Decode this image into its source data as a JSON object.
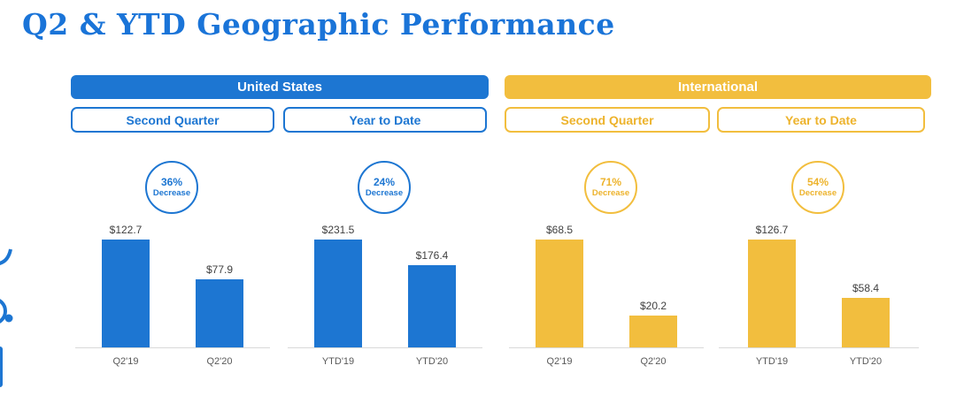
{
  "page": {
    "title": "Q2 & YTD Geographic Performance"
  },
  "colors": {
    "blue": "#1D76D2",
    "yellow": "#F2BE3E"
  },
  "sections": [
    {
      "label": "United States"
    },
    {
      "label": "International"
    }
  ],
  "subheaders": [
    "Second Quarter",
    "Year to Date",
    "Second Quarter",
    "Year to Date"
  ],
  "chart_data": [
    {
      "type": "bar",
      "section": "United States",
      "period": "Second Quarter",
      "badge": {
        "percent": "36%",
        "label": "Decrease"
      },
      "categories": [
        "Q2'19",
        "Q2'20"
      ],
      "values": [
        122.7,
        77.9
      ],
      "value_labels": [
        "$122.7",
        "$77.9"
      ],
      "bar_color": "#1D76D2"
    },
    {
      "type": "bar",
      "section": "United States",
      "period": "Year to Date",
      "badge": {
        "percent": "24%",
        "label": "Decrease"
      },
      "categories": [
        "YTD'19",
        "YTD'20"
      ],
      "values": [
        231.5,
        176.4
      ],
      "value_labels": [
        "$231.5",
        "$176.4"
      ],
      "bar_color": "#1D76D2"
    },
    {
      "type": "bar",
      "section": "International",
      "period": "Second Quarter",
      "badge": {
        "percent": "71%",
        "label": "Decrease"
      },
      "categories": [
        "Q2'19",
        "Q2'20"
      ],
      "values": [
        68.5,
        20.2
      ],
      "value_labels": [
        "$68.5",
        "$20.2"
      ],
      "bar_color": "#F2BE3E"
    },
    {
      "type": "bar",
      "section": "International",
      "period": "Year to Date",
      "badge": {
        "percent": "54%",
        "label": "Decrease"
      },
      "categories": [
        "YTD'19",
        "YTD'20"
      ],
      "values": [
        126.7,
        58.4
      ],
      "value_labels": [
        "$126.7",
        "$58.4"
      ],
      "bar_color": "#F2BE3E"
    }
  ]
}
